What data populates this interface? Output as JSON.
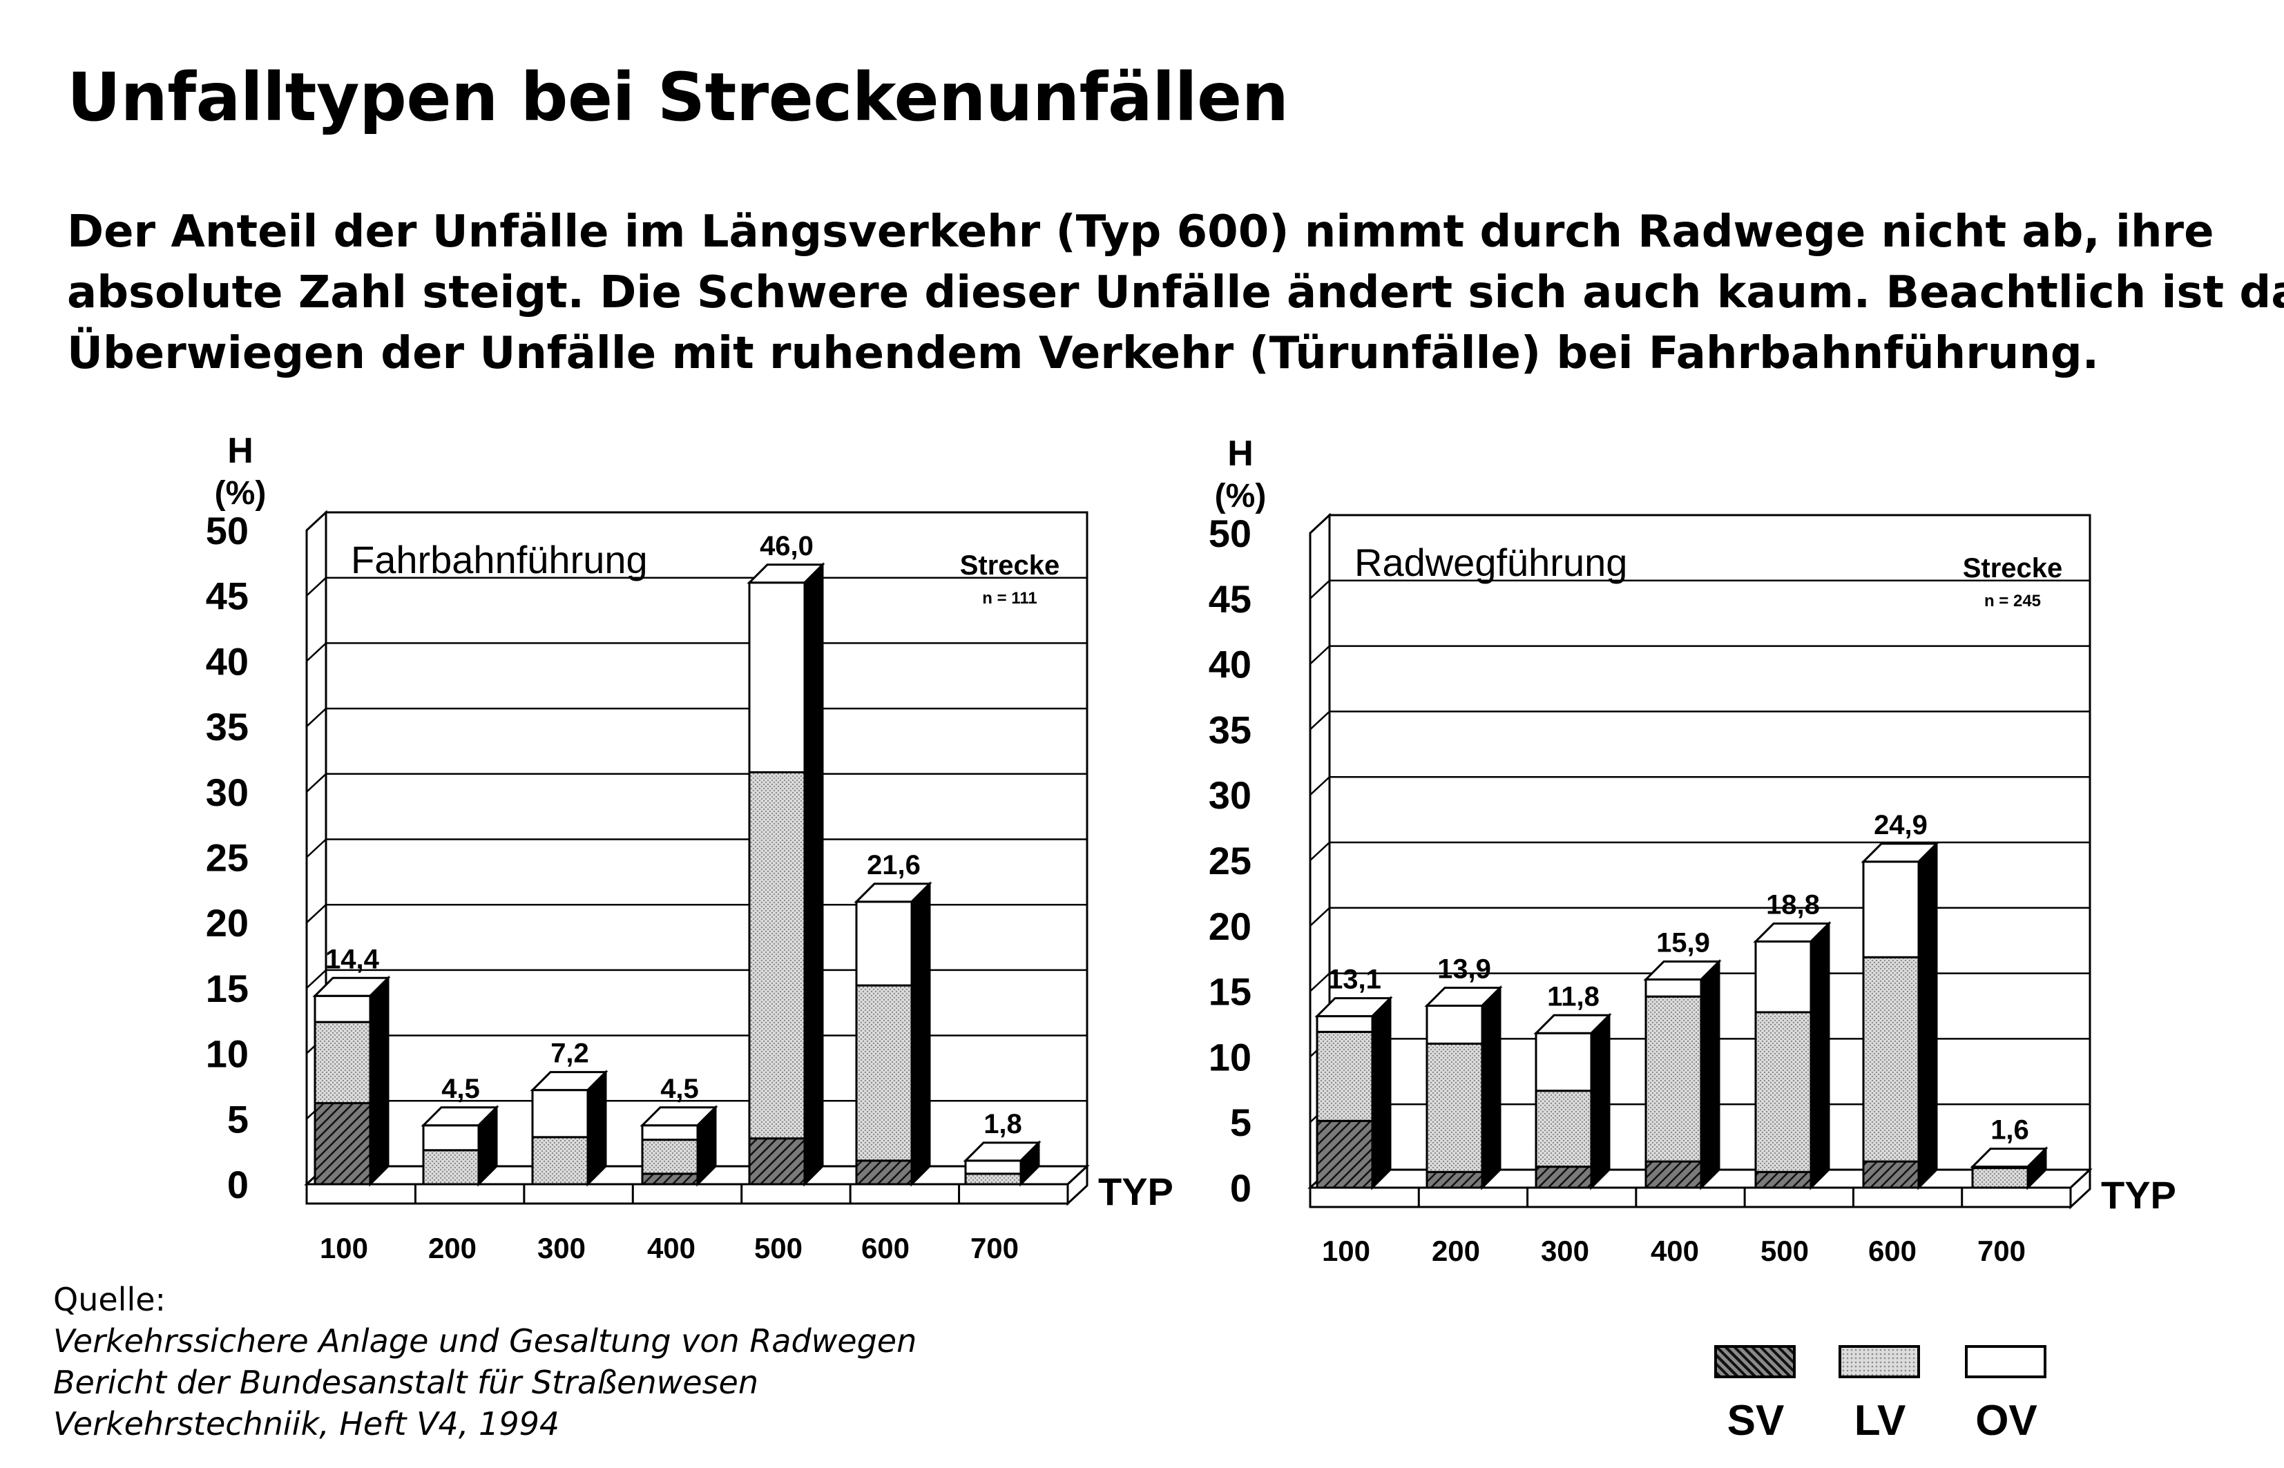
{
  "title": "Unfalltypen bei Streckenunfällen",
  "lead": [
    "Der Anteil der Unfälle im Längsverkehr (Typ 600) nimmt durch Radwege nicht ab, ihre",
    "absolute Zahl steigt. Die Schwere dieser Unfälle ändert sich auch kaum. Beachtlich ist das",
    "Überwiegen der Unfälle mit ruhendem Verkehr (Türunfälle) bei Fahrbahnführung."
  ],
  "source": {
    "label": "Quelle:",
    "lines": [
      "Verkehrssichere Anlage und Gesaltung von Radwegen",
      "Bericht der Bundesanstalt für Straßenwesen",
      "Verkehrstechniik, Heft V4, 1994"
    ]
  },
  "legend": [
    {
      "key": "SV",
      "label": "SV"
    },
    {
      "key": "LV",
      "label": "LV"
    },
    {
      "key": "OV",
      "label": "OV"
    }
  ],
  "colors": {
    "sv_fill": "#6e6e6e",
    "lv_fill": "#d2d2d2",
    "ov_fill": "#ffffff",
    "side_fill": "#000000",
    "line": "#000000"
  },
  "chart_data": [
    {
      "type": "bar",
      "stacked": true,
      "style": "3d",
      "title": "Fahrbahnführung",
      "note": "Strecke",
      "n_label": "n = 111",
      "ylabel_top": "H",
      "ylabel_unit": "(%)",
      "xlabel": "TYP",
      "ylim": [
        0,
        50
      ],
      "yticks": [
        "0",
        "5",
        "10",
        "15",
        "20",
        "25",
        "30",
        "35",
        "40",
        "45",
        "50"
      ],
      "categories": [
        "100",
        "200",
        "300",
        "400",
        "500",
        "600",
        "700"
      ],
      "totals": [
        14.4,
        4.5,
        7.2,
        4.5,
        46.0,
        21.6,
        1.8
      ],
      "total_labels": [
        "14,4",
        "4,5",
        "7,2",
        "4,5",
        "46,0",
        "21,6",
        "1,8"
      ],
      "series": [
        {
          "name": "SV",
          "values": [
            6.2,
            0.0,
            0.0,
            0.8,
            3.5,
            1.8,
            0.0
          ]
        },
        {
          "name": "LV",
          "values": [
            6.2,
            2.6,
            3.6,
            2.6,
            28.0,
            13.4,
            0.8
          ]
        },
        {
          "name": "OV",
          "values": [
            2.0,
            1.9,
            3.6,
            1.1,
            14.5,
            6.4,
            1.0
          ]
        }
      ]
    },
    {
      "type": "bar",
      "stacked": true,
      "style": "3d",
      "title": "Radwegführung",
      "note": "Strecke",
      "n_label": "n = 245",
      "ylabel_top": "H",
      "ylabel_unit": "(%)",
      "xlabel": "TYP",
      "ylim": [
        0,
        50
      ],
      "yticks": [
        "0",
        "5",
        "10",
        "15",
        "20",
        "25",
        "30",
        "35",
        "40",
        "45",
        "50"
      ],
      "categories": [
        "100",
        "200",
        "300",
        "400",
        "500",
        "600",
        "700"
      ],
      "totals": [
        13.1,
        13.9,
        11.8,
        15.9,
        18.8,
        24.9,
        1.6
      ],
      "total_labels": [
        "13,1",
        "13,9",
        "11,8",
        "15,9",
        "18,8",
        "24,9",
        "1,6"
      ],
      "series": [
        {
          "name": "SV",
          "values": [
            5.1,
            1.2,
            1.6,
            2.0,
            1.2,
            2.0,
            0.0
          ]
        },
        {
          "name": "LV",
          "values": [
            6.8,
            9.8,
            5.8,
            12.6,
            12.2,
            15.6,
            1.5
          ]
        },
        {
          "name": "OV",
          "values": [
            1.2,
            2.9,
            4.4,
            1.3,
            5.4,
            7.3,
            0.1
          ]
        }
      ]
    }
  ]
}
